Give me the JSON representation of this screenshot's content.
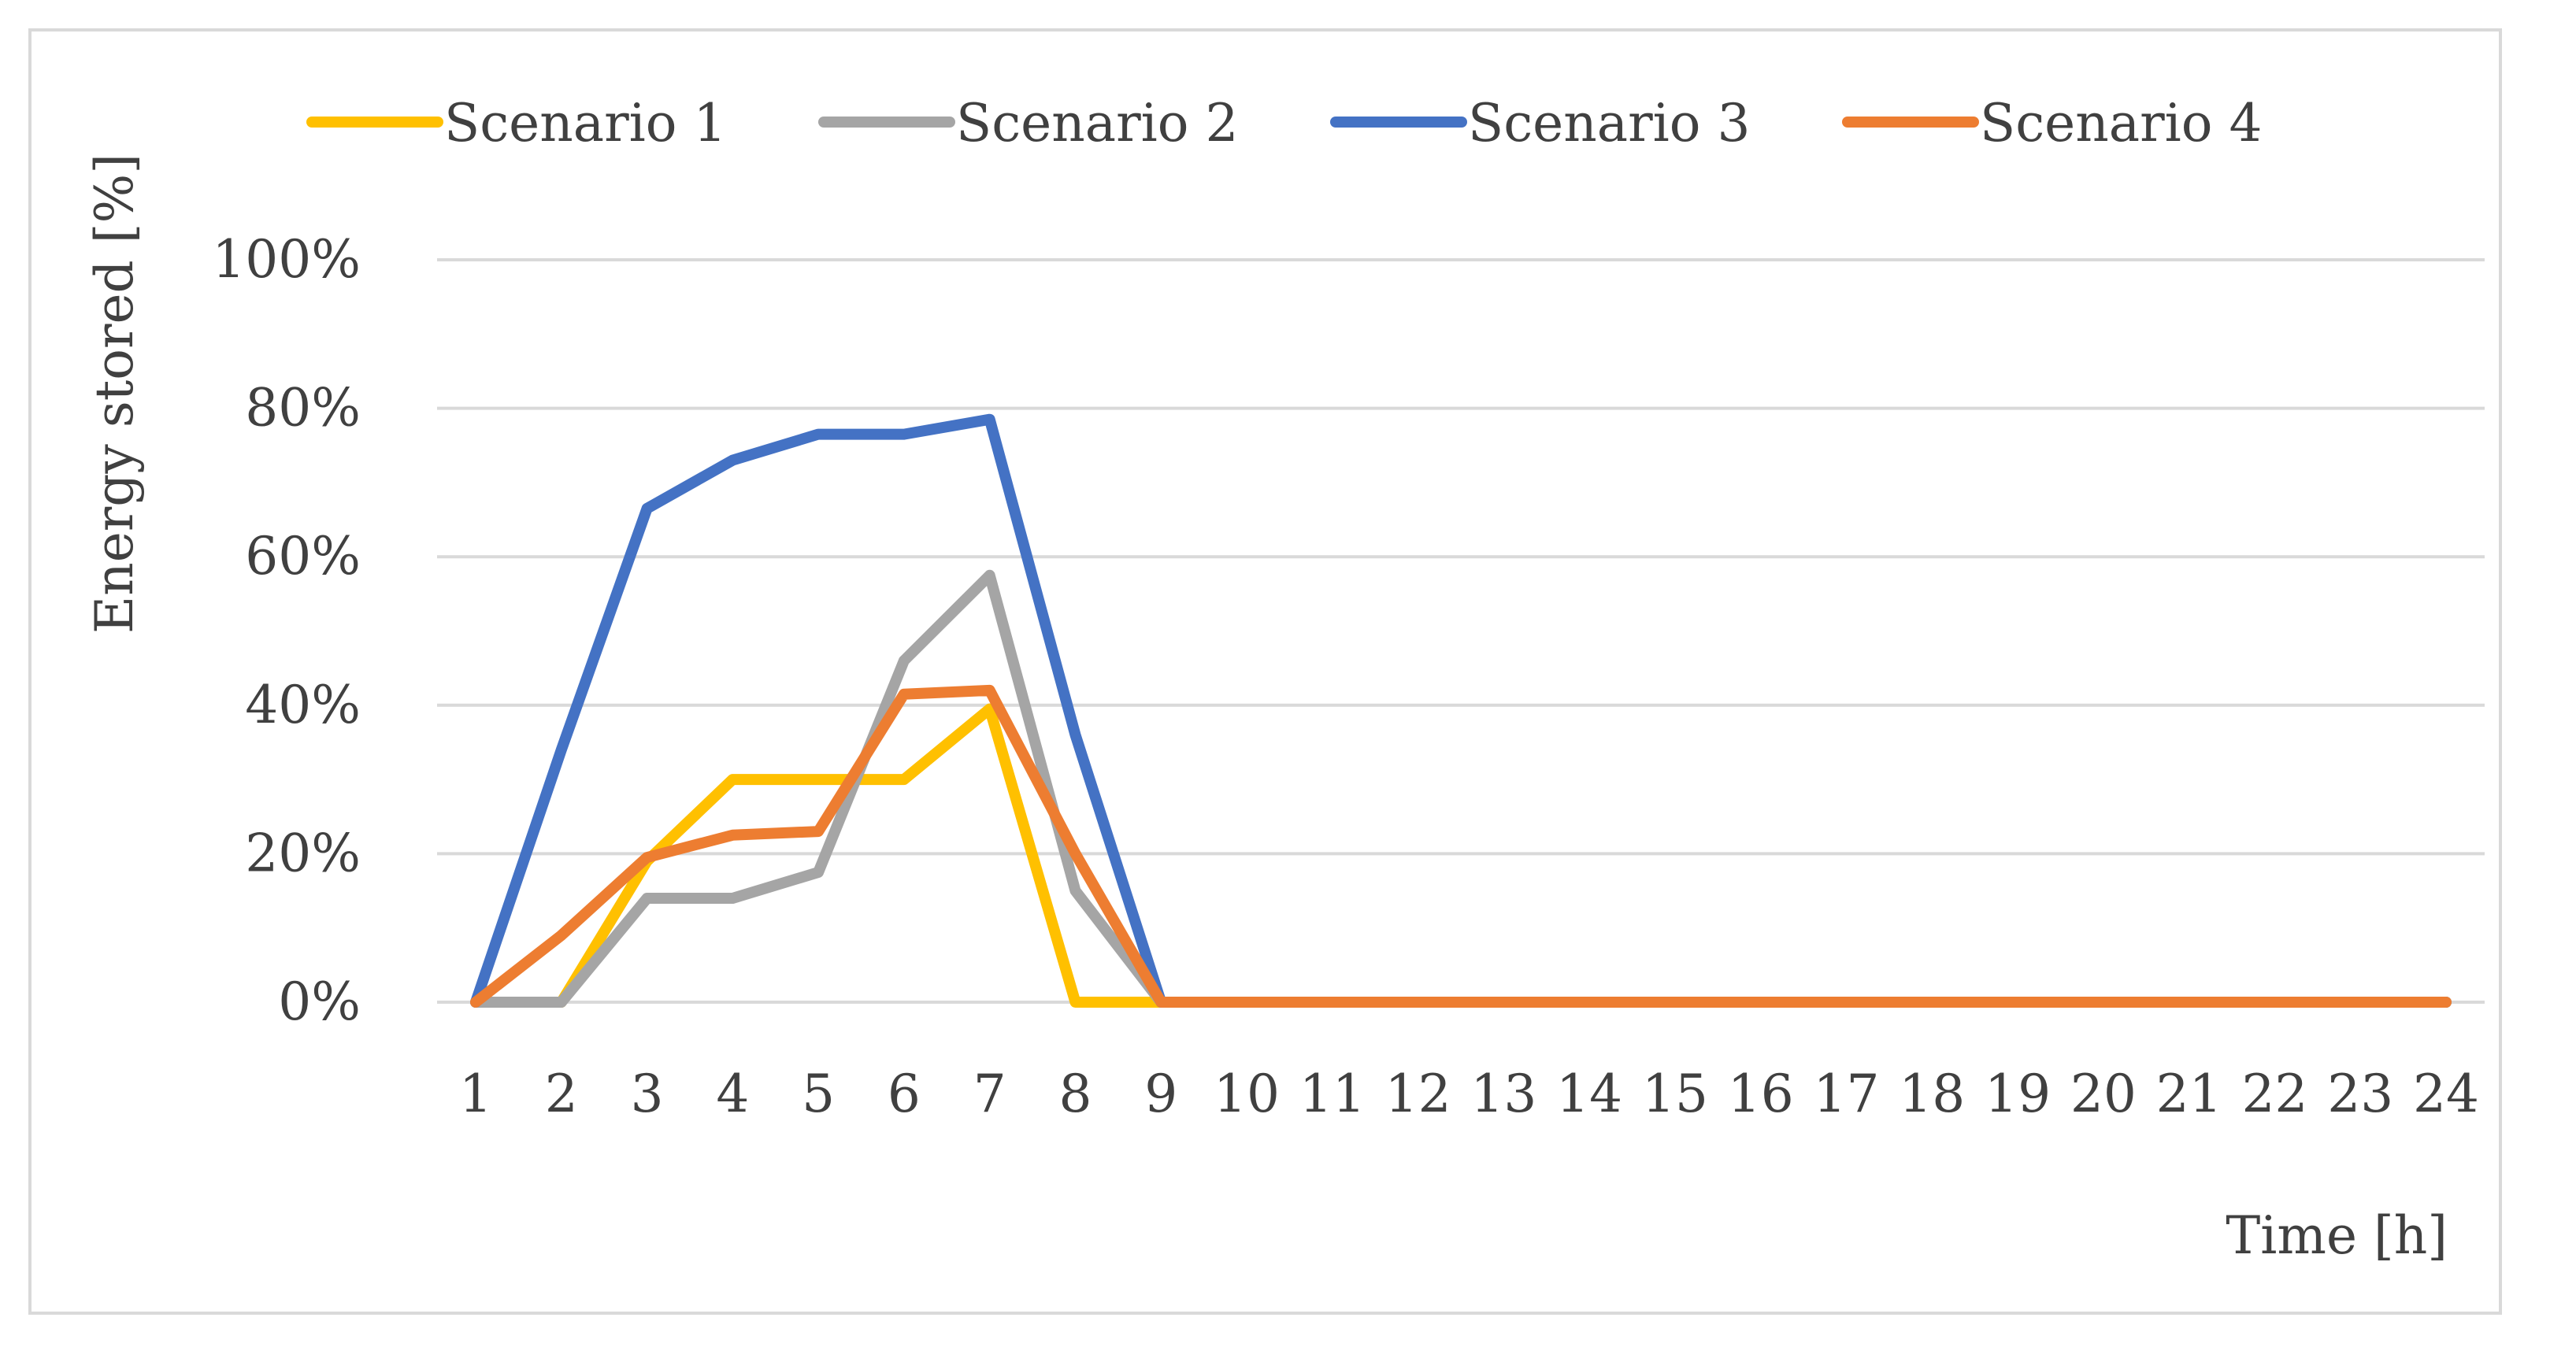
{
  "chart_data": {
    "type": "line",
    "title": "",
    "xlabel": "Time [h]",
    "ylabel": "Energy stored [%]",
    "x": [
      1,
      2,
      3,
      4,
      5,
      6,
      7,
      8,
      9,
      10,
      11,
      12,
      13,
      14,
      15,
      16,
      17,
      18,
      19,
      20,
      21,
      22,
      23,
      24
    ],
    "ylim": [
      0,
      100
    ],
    "yticks": [
      0,
      20,
      40,
      60,
      80,
      100
    ],
    "ytick_labels": [
      "0%",
      "20%",
      "40%",
      "60%",
      "80%",
      "100%"
    ],
    "grid": "horizontal",
    "legend_position": "top",
    "series": [
      {
        "name": "Scenario 1",
        "color": "#FFC000",
        "values": [
          0,
          0,
          19,
          30,
          30,
          30,
          39.5,
          0,
          0,
          0,
          0,
          0,
          0,
          0,
          0,
          0,
          0,
          0,
          0,
          0,
          0,
          0,
          0,
          0
        ]
      },
      {
        "name": "Scenario 2",
        "color": "#A5A5A5",
        "values": [
          0,
          0,
          14,
          14,
          17.5,
          46,
          57.5,
          15,
          0,
          0,
          0,
          0,
          0,
          0,
          0,
          0,
          0,
          0,
          0,
          0,
          0,
          0,
          0,
          0
        ]
      },
      {
        "name": "Scenario 3",
        "color": "#4472C4",
        "values": [
          0,
          34,
          66.5,
          73,
          76.5,
          76.5,
          78.5,
          36,
          0,
          0,
          0,
          0,
          0,
          0,
          0,
          0,
          0,
          0,
          0,
          0,
          0,
          0,
          0,
          0
        ]
      },
      {
        "name": "Scenario 4",
        "color": "#ED7D31",
        "values": [
          0,
          9,
          19.5,
          22.5,
          23,
          41.5,
          42,
          20,
          0,
          0,
          0,
          0,
          0,
          0,
          0,
          0,
          0,
          0,
          0,
          0,
          0,
          0,
          0,
          0
        ]
      }
    ]
  },
  "colors": {
    "gridline": "#d9d9d9",
    "text": "#404040",
    "frame": "#d9d9d9"
  }
}
